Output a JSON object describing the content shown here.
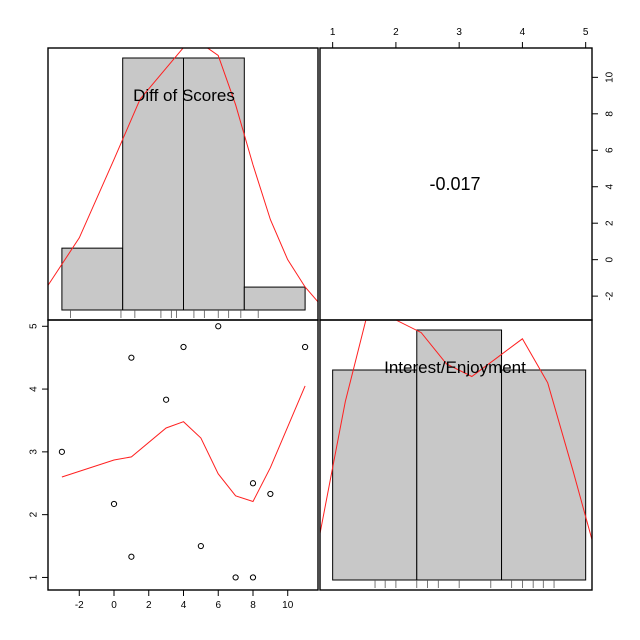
{
  "chart_data": [
    {
      "type": "histogram",
      "panel": "top-left",
      "variable_label": "Diff of Scores",
      "bins": [
        {
          "from": -3,
          "to": 0.5,
          "count": 2.7
        },
        {
          "from": 0.5,
          "to": 4,
          "count": 11
        },
        {
          "from": 4,
          "to": 7.5,
          "count": 11
        },
        {
          "from": 7.5,
          "to": 11,
          "count": 1
        }
      ],
      "density_curve": [
        [
          -4,
          -1.7
        ],
        [
          -2,
          1.2
        ],
        [
          0,
          5.5
        ],
        [
          1.5,
          8.8
        ],
        [
          3,
          10.5
        ],
        [
          4.5,
          12.2
        ],
        [
          6,
          11.2
        ],
        [
          7,
          8.5
        ],
        [
          8,
          5.2
        ],
        [
          9,
          2.2
        ],
        [
          10,
          0
        ],
        [
          11,
          -1.5
        ],
        [
          12,
          -2.6
        ]
      ],
      "rug": [
        -2.5,
        0.4,
        1.2,
        2.7,
        3.3,
        3.6,
        4.6,
        5.2,
        6.0,
        6.6,
        7.3,
        8.3
      ],
      "right_axis": {
        "ticks": [
          -2,
          0,
          2,
          4,
          6,
          8,
          10
        ],
        "labels": [
          "-2",
          "0",
          "2",
          "4",
          "6",
          "8",
          "10"
        ],
        "range": [
          -3.2,
          11.5
        ]
      }
    },
    {
      "type": "text",
      "panel": "top-right",
      "correlation": "-0.017",
      "top_axis": {
        "ticks": [
          1,
          2,
          3,
          4,
          5
        ],
        "labels": [
          "1",
          "2",
          "3",
          "4",
          "5"
        ],
        "range": [
          0.8,
          5.1
        ]
      }
    },
    {
      "type": "scatter",
      "panel": "bottom-left",
      "x": [
        -3,
        0,
        1,
        1,
        3,
        4,
        5,
        6,
        7,
        8,
        8,
        9,
        11
      ],
      "y": [
        3,
        2.17,
        1.33,
        4.5,
        3.83,
        4.67,
        1.5,
        5,
        1,
        1,
        2.5,
        2.33,
        4.67
      ],
      "smooth_line": [
        [
          -3,
          2.6
        ],
        [
          0,
          2.87
        ],
        [
          1,
          2.92
        ],
        [
          3,
          3.38
        ],
        [
          4,
          3.48
        ],
        [
          5,
          3.22
        ],
        [
          6,
          2.65
        ],
        [
          7,
          2.3
        ],
        [
          8,
          2.21
        ],
        [
          9,
          2.75
        ],
        [
          11,
          4.05
        ]
      ],
      "x_axis": {
        "ticks": [
          -2,
          0,
          2,
          4,
          6,
          8,
          10
        ],
        "labels": [
          "-2",
          "0",
          "2",
          "4",
          "6",
          "8",
          "10"
        ],
        "range": [
          -3.8,
          11.8
        ]
      },
      "y_axis": {
        "ticks": [
          1,
          2,
          3,
          4,
          5
        ],
        "labels": [
          "1",
          "2",
          "3",
          "4",
          "5"
        ],
        "range": [
          0.8,
          5.1
        ]
      }
    },
    {
      "type": "histogram",
      "panel": "bottom-right",
      "variable_label": "Interest/Enjoyment",
      "bins": [
        {
          "from": 1,
          "to": 2.33,
          "count": 4.2
        },
        {
          "from": 2.33,
          "to": 3.67,
          "count": 5
        },
        {
          "from": 3.67,
          "to": 5,
          "count": 4.2
        }
      ],
      "density_curve": [
        [
          0.8,
          1.7
        ],
        [
          1.2,
          3.8
        ],
        [
          1.5,
          5.0
        ],
        [
          1.6,
          5.4
        ],
        [
          2.0,
          5.1
        ],
        [
          2.4,
          4.9
        ],
        [
          2.8,
          4.4
        ],
        [
          3.2,
          4.2
        ],
        [
          3.6,
          4.5
        ],
        [
          4.0,
          4.8
        ],
        [
          4.4,
          4.1
        ],
        [
          4.8,
          2.7
        ],
        [
          5.1,
          1.6
        ]
      ],
      "rug": [
        1.67,
        1.83,
        2.0,
        2.33,
        2.5,
        2.67,
        3.0,
        3.5,
        3.83,
        4.0,
        4.17,
        4.33,
        4.5
      ],
      "count_range": [
        0.8,
        5.1
      ]
    }
  ]
}
